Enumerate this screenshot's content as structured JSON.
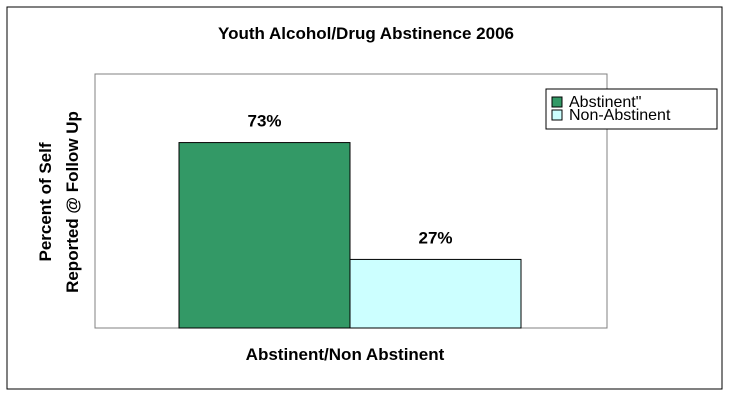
{
  "chart_data": {
    "type": "bar",
    "title": "Youth Alcohol/Drug Abstinence 2006",
    "xlabel": "Abstinent/Non Abstinent",
    "ylabel_lines": [
      "Percent of Self",
      "Reported @ Follow Up"
    ],
    "ylim": [
      0,
      100
    ],
    "grid": false,
    "legend_position": "top-right",
    "series": [
      {
        "name": "Abstinent\"",
        "value": 73,
        "label": "73%",
        "color": "#339966"
      },
      {
        "name": "Non-Abstinent",
        "value": 27,
        "label": "27%",
        "color": "#ccffff"
      }
    ]
  }
}
